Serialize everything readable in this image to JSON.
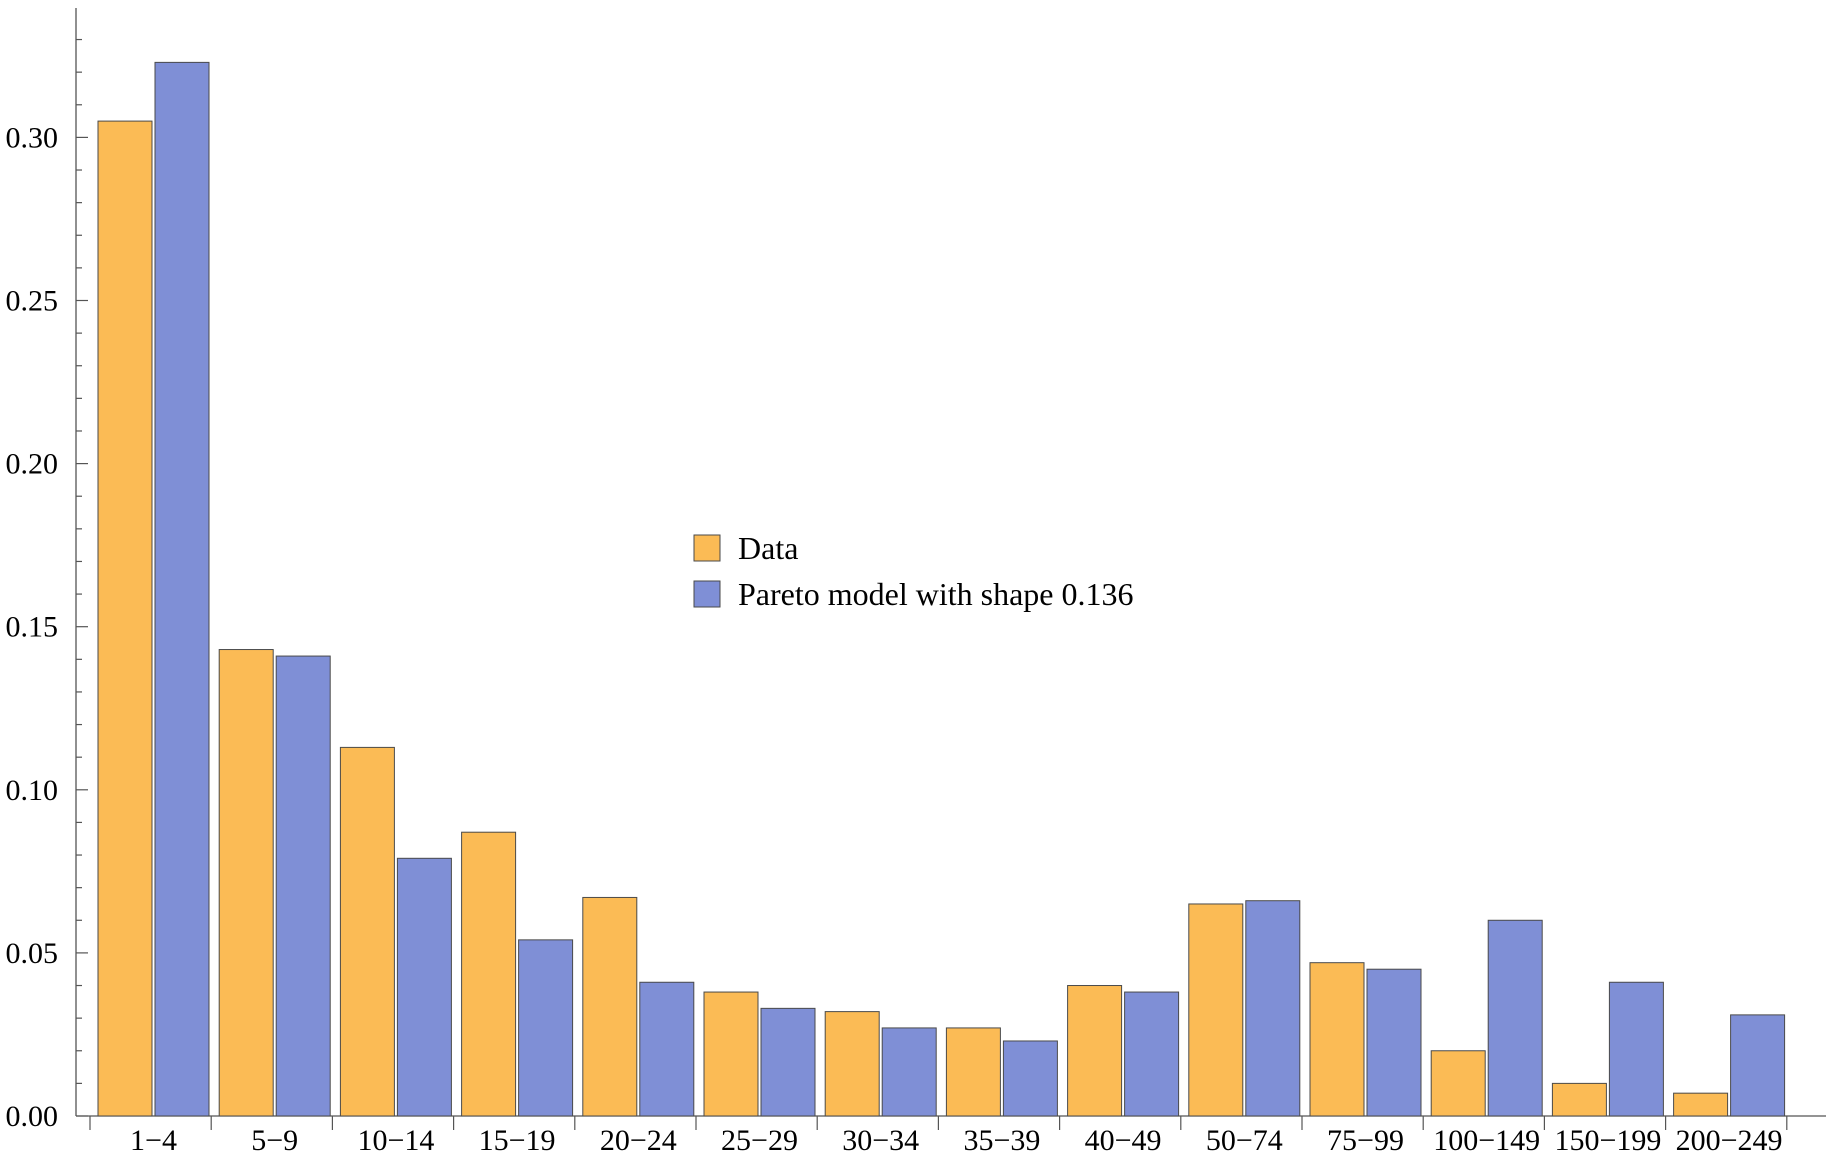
{
  "chart_data": {
    "type": "bar",
    "title": "",
    "xlabel": "",
    "ylabel": "",
    "ylim": [
      0,
      0.34
    ],
    "yticks": [
      "0.00",
      "0.05",
      "0.10",
      "0.15",
      "0.20",
      "0.25",
      "0.30"
    ],
    "categories": [
      "1−4",
      "5−9",
      "10−14",
      "15−19",
      "20−24",
      "25−29",
      "30−34",
      "35−39",
      "40−49",
      "50−74",
      "75−99",
      "100−149",
      "150−199",
      "200−249"
    ],
    "series": [
      {
        "name": "Data",
        "color": "#fbbb55",
        "values": [
          0.305,
          0.143,
          0.113,
          0.087,
          0.067,
          0.038,
          0.032,
          0.027,
          0.04,
          0.065,
          0.047,
          0.02,
          0.01,
          0.007
        ]
      },
      {
        "name": "Pareto model with shape 0.136",
        "color": "#7f8fd6",
        "values": [
          0.323,
          0.141,
          0.079,
          0.054,
          0.041,
          0.033,
          0.027,
          0.023,
          0.038,
          0.066,
          0.045,
          0.06,
          0.041,
          0.031
        ]
      }
    ],
    "legend_position": "center",
    "grid": false
  }
}
